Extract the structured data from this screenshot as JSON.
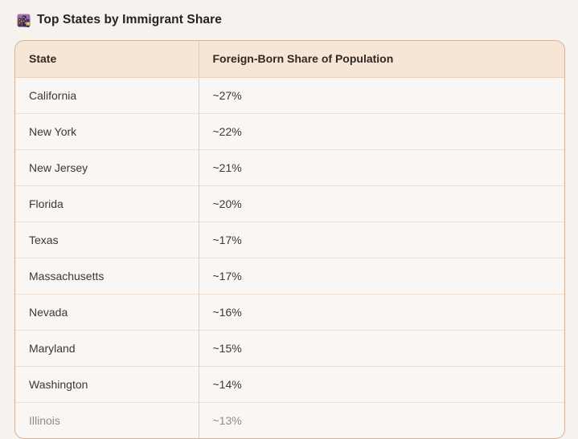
{
  "header": {
    "title": "Top States by Immigrant Share",
    "icon": "night-cityscape-icon"
  },
  "table": {
    "columns": [
      "State",
      "Foreign-Born Share of Population"
    ],
    "rows": [
      {
        "state": "California",
        "share": "~27%"
      },
      {
        "state": "New York",
        "share": "~22%"
      },
      {
        "state": "New Jersey",
        "share": "~21%"
      },
      {
        "state": "Florida",
        "share": "~20%"
      },
      {
        "state": "Texas",
        "share": "~17%"
      },
      {
        "state": "Massachusetts",
        "share": "~17%"
      },
      {
        "state": "Nevada",
        "share": "~16%"
      },
      {
        "state": "Maryland",
        "share": "~15%"
      },
      {
        "state": "Washington",
        "share": "~14%"
      },
      {
        "state": "Illinois",
        "share": "~13%"
      }
    ]
  },
  "chart_data": {
    "type": "table",
    "title": "Top States by Immigrant Share",
    "categories": [
      "California",
      "New York",
      "New Jersey",
      "Florida",
      "Texas",
      "Massachusetts",
      "Nevada",
      "Maryland",
      "Washington",
      "Illinois"
    ],
    "values": [
      27,
      22,
      21,
      20,
      17,
      17,
      16,
      15,
      14,
      13
    ],
    "value_labels": [
      "~27%",
      "~22%",
      "~21%",
      "~20%",
      "~17%",
      "~17%",
      "~16%",
      "~15%",
      "~14%",
      "~13%"
    ],
    "xlabel": "State",
    "ylabel": "Foreign-Born Share of Population"
  },
  "colors": {
    "page_background": "#f6f2ee",
    "card_border": "#cfb29f",
    "header_background": "#f7e5d5",
    "row_background": "#f9f6f3",
    "row_divider": "#efddd0",
    "column_divider": "#e3ccbc",
    "title_text": "#262220",
    "cell_text": "#3b3835",
    "faded_row_text": "#918c88"
  }
}
